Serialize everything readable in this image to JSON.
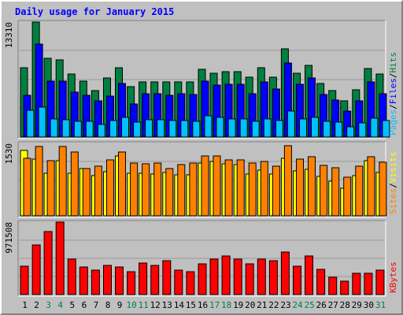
{
  "colors": {
    "background": "#c0c0c0",
    "panel": "#c0c0c0",
    "hits": "#008040",
    "files": "#0000ff",
    "pages": "#00c0ff",
    "visits": "#ffff00",
    "sites": "#ff8000",
    "kbytes": "#ff0000",
    "title": "#0000ff",
    "weekend_label": "#008040",
    "weekday_label": "#000000"
  },
  "chart_data": {
    "type": "bar",
    "title": "Daily usage for January 2015",
    "days": [
      "1",
      "2",
      "3",
      "4",
      "5",
      "6",
      "7",
      "8",
      "9",
      "10",
      "11",
      "12",
      "13",
      "14",
      "15",
      "16",
      "17",
      "18",
      "19",
      "20",
      "21",
      "22",
      "23",
      "24",
      "25",
      "26",
      "27",
      "28",
      "29",
      "30",
      "31"
    ],
    "weekend_days": [
      "3",
      "4",
      "10",
      "11",
      "17",
      "18",
      "24",
      "25",
      "31"
    ],
    "panels": [
      {
        "id": "top",
        "ymax_label": "13310",
        "ymax": 13310,
        "legend": [
          "Pages",
          "Files",
          "Hits"
        ],
        "series": [
          {
            "name": "Hits",
            "values": [
              8000,
              13310,
              9100,
              8900,
              7300,
              6500,
              5400,
              6800,
              8000,
              5800,
              6400,
              6400,
              6400,
              6400,
              6400,
              7800,
              7400,
              7600,
              7600,
              6900,
              8000,
              6900,
              10200,
              7400,
              8300,
              6200,
              5400,
              4200,
              5500,
              7900,
              7300
            ]
          },
          {
            "name": "Files",
            "values": [
              4800,
              10800,
              6500,
              6500,
              5200,
              4800,
              4200,
              4700,
              6200,
              3800,
              5000,
              5000,
              4800,
              5000,
              4900,
              6500,
              6000,
              6100,
              6100,
              5000,
              6400,
              5600,
              8600,
              6100,
              6800,
              4900,
              4300,
              3000,
              4200,
              6400,
              5000
            ]
          },
          {
            "name": "Pages",
            "values": [
              3100,
              3500,
              2100,
              2000,
              1800,
              1800,
              1500,
              1900,
              2300,
              1700,
              2000,
              2000,
              1900,
              1900,
              1800,
              2500,
              2300,
              2100,
              2100,
              1800,
              2100,
              1900,
              3000,
              2100,
              2300,
              1800,
              1700,
              1200,
              1600,
              2200,
              1900
            ]
          }
        ]
      },
      {
        "id": "middle",
        "ymax_label": "1530",
        "ymax": 1530,
        "legend": [
          "Sites",
          "Visits"
        ],
        "series": [
          {
            "name": "Visits",
            "values": [
              1380,
              1190,
              890,
              1160,
              900,
              1000,
              850,
              930,
              1270,
              900,
              890,
              880,
              920,
              860,
              860,
              1120,
              1150,
              1090,
              1080,
              880,
              960,
              880,
              1220,
              940,
              980,
              830,
              730,
              580,
              850,
              1170,
              910
            ]
          },
          {
            "name": "Sites",
            "values": [
              1220,
              1470,
              1170,
              1460,
              1340,
              990,
              1040,
              1180,
              1350,
              1110,
              1100,
              1110,
              990,
              1080,
              1110,
              1260,
              1260,
              1180,
              1180,
              1110,
              1140,
              1050,
              1480,
              1200,
              1240,
              1060,
              1020,
              820,
              1050,
              1250,
              1130
            ]
          }
        ]
      },
      {
        "id": "bottom",
        "ymax_label": "971508",
        "ymax": 971508,
        "legend": [
          "KBytes"
        ],
        "series": [
          {
            "name": "KBytes",
            "values": [
              380000,
              670000,
              840000,
              971508,
              470000,
              370000,
              330000,
              390000,
              370000,
              310000,
              420000,
              390000,
              450000,
              330000,
              310000,
              410000,
              480000,
              520000,
              480000,
              410000,
              480000,
              450000,
              570000,
              380000,
              520000,
              340000,
              230000,
              180000,
              280000,
              290000,
              330000
            ]
          }
        ]
      }
    ]
  }
}
